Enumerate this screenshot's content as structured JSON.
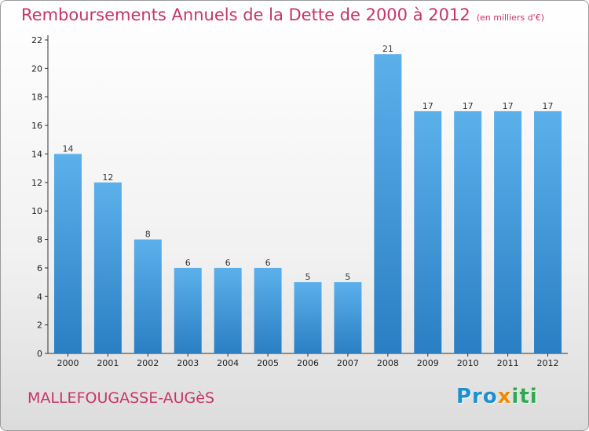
{
  "title": "Remboursements Annuels de la Dette de 2000 à 2012",
  "subtitle": "(en milliers d'€)",
  "commune": "MALLEFOUGASSE-AUGèS",
  "logo": {
    "part1": "Pro",
    "part2": "x",
    "part3": "iti"
  },
  "colors": {
    "bar_top": "#5cb0ea",
    "bar_bottom": "#2a7fc4",
    "title": "#c8336b"
  },
  "chart_data": {
    "type": "bar",
    "categories": [
      "2000",
      "2001",
      "2002",
      "2003",
      "2004",
      "2005",
      "2006",
      "2007",
      "2008",
      "2009",
      "2010",
      "2011",
      "2012"
    ],
    "values": [
      14,
      12,
      8,
      6,
      6,
      6,
      5,
      5,
      21,
      17,
      17,
      17,
      17
    ],
    "ylim": [
      0,
      22
    ],
    "yticks": [
      0,
      2,
      4,
      6,
      8,
      10,
      12,
      14,
      16,
      18,
      20,
      22
    ],
    "grid": false,
    "title": "Remboursements Annuels de la Dette de 2000 à 2012",
    "xlabel": "",
    "ylabel": ""
  }
}
